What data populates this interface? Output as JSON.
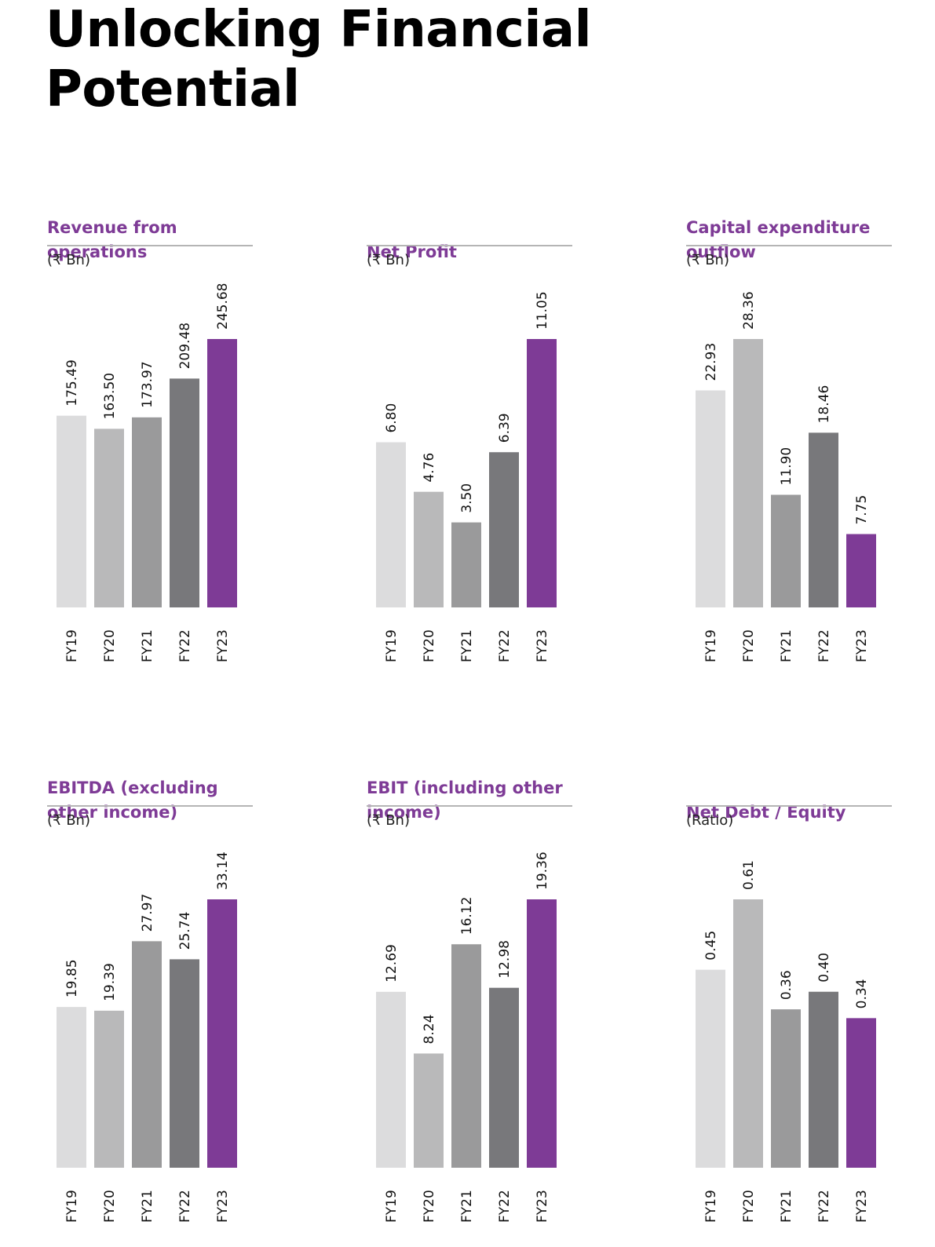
{
  "page": {
    "title_line1": "Unlocking Financial",
    "title_line2": "Potential"
  },
  "colors": {
    "accent": "#7e3b96",
    "bars": [
      "#dcdcdd",
      "#b9b9ba",
      "#9a9a9b",
      "#78787b",
      "#7e3b96"
    ]
  },
  "chart_data": [
    {
      "type": "bar",
      "title": "Revenue from operations",
      "unit": "(₹ Bn)",
      "categories": [
        "FY19",
        "FY20",
        "FY21",
        "FY22",
        "FY23"
      ],
      "values": [
        175.49,
        163.5,
        173.97,
        209.48,
        245.68
      ],
      "labels": [
        "175.49",
        "163.50",
        "173.97",
        "209.48",
        "245.68"
      ]
    },
    {
      "type": "bar",
      "title": "Net Profit",
      "unit": "(₹ Bn)",
      "categories": [
        "FY19",
        "FY20",
        "FY21",
        "FY22",
        "FY23"
      ],
      "values": [
        6.8,
        4.76,
        3.5,
        6.39,
        11.05
      ],
      "labels": [
        "6.80",
        "4.76",
        "3.50",
        "6.39",
        "11.05"
      ]
    },
    {
      "type": "bar",
      "title": "Capital expenditure outflow",
      "unit": "(₹ Bn)",
      "categories": [
        "FY19",
        "FY20",
        "FY21",
        "FY22",
        "FY23"
      ],
      "values": [
        22.93,
        28.36,
        11.9,
        18.46,
        7.75
      ],
      "labels": [
        "22.93",
        "28.36",
        "11.90",
        "18.46",
        "7.75"
      ]
    },
    {
      "type": "bar",
      "title": "EBITDA (excluding other income)",
      "unit": "(₹ Bn)",
      "categories": [
        "FY19",
        "FY20",
        "FY21",
        "FY22",
        "FY23"
      ],
      "values": [
        19.85,
        19.39,
        27.97,
        25.74,
        33.14
      ],
      "labels": [
        "19.85",
        "19.39",
        "27.97",
        "25.74",
        "33.14"
      ]
    },
    {
      "type": "bar",
      "title": "EBIT (including other income)",
      "unit": "(₹ Bn)",
      "categories": [
        "FY19",
        "FY20",
        "FY21",
        "FY22",
        "FY23"
      ],
      "values": [
        12.69,
        8.24,
        16.12,
        12.98,
        19.36
      ],
      "labels": [
        "12.69",
        "8.24",
        "16.12",
        "12.98",
        "19.36"
      ]
    },
    {
      "type": "bar",
      "title": "Net Debt / Equity",
      "unit": "(Ratio)",
      "categories": [
        "FY19",
        "FY20",
        "FY21",
        "FY22",
        "FY23"
      ],
      "values": [
        0.45,
        0.61,
        0.36,
        0.4,
        0.34
      ],
      "labels": [
        "0.45",
        "0.61",
        "0.36",
        "0.40",
        "0.34"
      ]
    }
  ]
}
